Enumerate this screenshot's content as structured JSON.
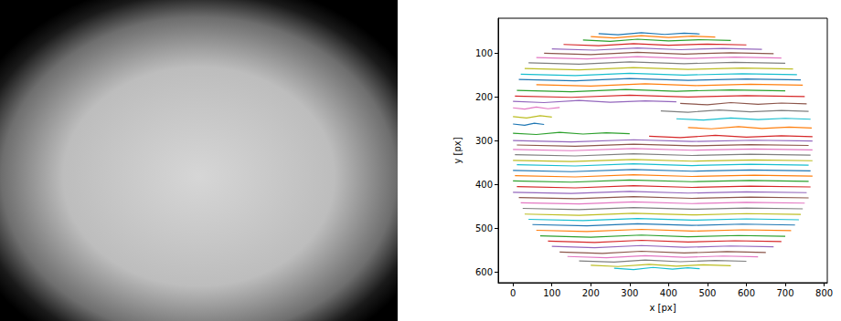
{
  "chart_data": {
    "type": "line",
    "x_label": "x [px]",
    "y_label": "y [px]",
    "xlim": [
      -38,
      808
    ],
    "xticks": [
      0,
      100,
      200,
      300,
      400,
      500,
      600,
      700,
      800
    ],
    "ylim": [
      625,
      20
    ],
    "yticks": [
      100,
      200,
      300,
      400,
      500,
      600
    ],
    "grid": false,
    "series": [
      {
        "color": "#1f77b4",
        "x": [
          220,
          270,
          330,
          390,
          440,
          480
        ],
        "values": [
          55,
          58,
          53,
          57,
          54,
          56
        ]
      },
      {
        "color": "#ff7f0e",
        "x": [
          200,
          260,
          330,
          400,
          460,
          520
        ],
        "values": [
          62,
          65,
          60,
          64,
          61,
          63
        ]
      },
      {
        "color": "#2ca02c",
        "x": [
          180,
          250,
          320,
          400,
          480,
          560
        ],
        "values": [
          70,
          73,
          68,
          72,
          69,
          71
        ]
      },
      {
        "color": "#d62728",
        "x": [
          130,
          220,
          310,
          400,
          500,
          600
        ],
        "values": [
          80,
          83,
          78,
          82,
          79,
          81
        ]
      },
      {
        "color": "#9467bd",
        "x": [
          100,
          210,
          320,
          430,
          540,
          640
        ],
        "values": [
          90,
          93,
          88,
          92,
          89,
          91
        ]
      },
      {
        "color": "#8c564b",
        "x": [
          80,
          200,
          320,
          440,
          560,
          670
        ],
        "values": [
          100,
          103,
          98,
          102,
          99,
          101
        ]
      },
      {
        "color": "#e377c2",
        "x": [
          60,
          190,
          320,
          450,
          570,
          690
        ],
        "values": [
          110,
          113,
          108,
          112,
          109,
          111
        ]
      },
      {
        "color": "#7f7f7f",
        "x": [
          40,
          170,
          300,
          440,
          570,
          700
        ],
        "values": [
          122,
          125,
          120,
          124,
          121,
          123
        ]
      },
      {
        "color": "#bcbd22",
        "x": [
          30,
          170,
          310,
          450,
          590,
          720
        ],
        "values": [
          135,
          138,
          133,
          137,
          134,
          136
        ]
      },
      {
        "color": "#17becf",
        "x": [
          20,
          160,
          300,
          440,
          590,
          730
        ],
        "values": [
          148,
          151,
          146,
          150,
          147,
          149
        ]
      },
      {
        "color": "#1f77b4",
        "x": [
          15,
          160,
          300,
          450,
          600,
          740
        ],
        "values": [
          160,
          163,
          158,
          162,
          159,
          161
        ]
      },
      {
        "color": "#ff7f0e",
        "x": [
          60,
          200,
          340,
          470,
          610,
          745
        ],
        "values": [
          172,
          175,
          170,
          174,
          171,
          173
        ]
      },
      {
        "color": "#2ca02c",
        "x": [
          10,
          150,
          290,
          420,
          560,
          700
        ],
        "values": [
          185,
          188,
          183,
          187,
          184,
          186
        ]
      },
      {
        "color": "#d62728",
        "x": [
          5,
          150,
          300,
          450,
          600,
          750
        ],
        "values": [
          198,
          201,
          196,
          200,
          197,
          199
        ]
      },
      {
        "color": "#9467bd",
        "x": [
          0,
          80,
          170,
          250,
          340,
          420
        ],
        "values": [
          210,
          213,
          208,
          212,
          209,
          211
        ]
      },
      {
        "color": "#8c564b",
        "x": [
          430,
          500,
          560,
          630,
          690,
          755
        ],
        "values": [
          215,
          218,
          213,
          217,
          214,
          216
        ]
      },
      {
        "color": "#e377c2",
        "x": [
          0,
          30,
          60,
          90,
          120
        ],
        "values": [
          225,
          228,
          223,
          227,
          224
        ]
      },
      {
        "color": "#7f7f7f",
        "x": [
          380,
          450,
          530,
          610,
          690,
          760
        ],
        "values": [
          232,
          235,
          230,
          234,
          231,
          233
        ]
      },
      {
        "color": "#bcbd22",
        "x": [
          0,
          35,
          70,
          100
        ],
        "values": [
          245,
          248,
          243,
          246
        ]
      },
      {
        "color": "#17becf",
        "x": [
          420,
          490,
          560,
          630,
          700,
          765
        ],
        "values": [
          250,
          253,
          248,
          252,
          249,
          251
        ]
      },
      {
        "color": "#1f77b4",
        "x": [
          0,
          30,
          55,
          80
        ],
        "values": [
          262,
          265,
          260,
          263
        ]
      },
      {
        "color": "#ff7f0e",
        "x": [
          450,
          510,
          580,
          640,
          710,
          768
        ],
        "values": [
          270,
          273,
          268,
          272,
          269,
          271
        ]
      },
      {
        "color": "#2ca02c",
        "x": [
          0,
          60,
          120,
          180,
          240,
          300
        ],
        "values": [
          283,
          286,
          281,
          285,
          282,
          284
        ]
      },
      {
        "color": "#d62728",
        "x": [
          350,
          430,
          520,
          600,
          690,
          770
        ],
        "values": [
          290,
          293,
          288,
          292,
          289,
          291
        ]
      },
      {
        "color": "#9467bd",
        "x": [
          0,
          150,
          310,
          460,
          620,
          770
        ],
        "values": [
          300,
          303,
          298,
          302,
          299,
          301
        ]
      },
      {
        "color": "#8c564b",
        "x": [
          10,
          160,
          310,
          460,
          610,
          760
        ],
        "values": [
          310,
          313,
          308,
          312,
          309,
          311
        ]
      },
      {
        "color": "#e377c2",
        "x": [
          0,
          150,
          310,
          460,
          620,
          770
        ],
        "values": [
          320,
          323,
          318,
          322,
          319,
          321
        ]
      },
      {
        "color": "#7f7f7f",
        "x": [
          5,
          160,
          310,
          460,
          610,
          765
        ],
        "values": [
          332,
          335,
          330,
          334,
          331,
          333
        ]
      },
      {
        "color": "#bcbd22",
        "x": [
          0,
          150,
          310,
          460,
          620,
          770
        ],
        "values": [
          345,
          348,
          343,
          347,
          344,
          346
        ]
      },
      {
        "color": "#17becf",
        "x": [
          10,
          160,
          310,
          460,
          610,
          760
        ],
        "values": [
          355,
          358,
          353,
          357,
          354,
          356
        ]
      },
      {
        "color": "#1f77b4",
        "x": [
          0,
          150,
          310,
          460,
          610,
          765
        ],
        "values": [
          368,
          371,
          366,
          370,
          367,
          369
        ]
      },
      {
        "color": "#ff7f0e",
        "x": [
          5,
          160,
          310,
          460,
          620,
          770
        ],
        "values": [
          380,
          383,
          378,
          382,
          379,
          381
        ]
      },
      {
        "color": "#2ca02c",
        "x": [
          0,
          150,
          300,
          460,
          610,
          760
        ],
        "values": [
          392,
          395,
          390,
          394,
          391,
          393
        ]
      },
      {
        "color": "#d62728",
        "x": [
          10,
          160,
          310,
          460,
          610,
          765
        ],
        "values": [
          405,
          408,
          403,
          407,
          404,
          406
        ]
      },
      {
        "color": "#9467bd",
        "x": [
          0,
          150,
          300,
          450,
          600,
          755
        ],
        "values": [
          418,
          421,
          416,
          420,
          417,
          419
        ]
      },
      {
        "color": "#8c564b",
        "x": [
          15,
          160,
          310,
          460,
          610,
          760
        ],
        "values": [
          430,
          433,
          428,
          432,
          429,
          431
        ]
      },
      {
        "color": "#e377c2",
        "x": [
          20,
          170,
          310,
          460,
          600,
          750
        ],
        "values": [
          442,
          445,
          440,
          444,
          441,
          443
        ]
      },
      {
        "color": "#7f7f7f",
        "x": [
          25,
          170,
          310,
          460,
          600,
          745
        ],
        "values": [
          455,
          458,
          453,
          457,
          454,
          456
        ]
      },
      {
        "color": "#bcbd22",
        "x": [
          30,
          170,
          310,
          460,
          600,
          740
        ],
        "values": [
          468,
          471,
          466,
          470,
          467,
          469
        ]
      },
      {
        "color": "#17becf",
        "x": [
          40,
          180,
          320,
          460,
          600,
          735
        ],
        "values": [
          480,
          483,
          478,
          482,
          479,
          481
        ]
      },
      {
        "color": "#1f77b4",
        "x": [
          50,
          190,
          320,
          460,
          590,
          725
        ],
        "values": [
          492,
          495,
          490,
          494,
          491,
          493
        ]
      },
      {
        "color": "#ff7f0e",
        "x": [
          60,
          190,
          330,
          460,
          590,
          715
        ],
        "values": [
          505,
          508,
          503,
          507,
          504,
          506
        ]
      },
      {
        "color": "#2ca02c",
        "x": [
          70,
          200,
          330,
          450,
          580,
          700
        ],
        "values": [
          518,
          521,
          516,
          520,
          517,
          519
        ]
      },
      {
        "color": "#d62728",
        "x": [
          90,
          210,
          330,
          450,
          570,
          690
        ],
        "values": [
          530,
          533,
          528,
          532,
          529,
          531
        ]
      },
      {
        "color": "#9467bd",
        "x": [
          100,
          210,
          330,
          440,
          560,
          670
        ],
        "values": [
          542,
          545,
          540,
          544,
          541,
          543
        ]
      },
      {
        "color": "#8c564b",
        "x": [
          120,
          230,
          330,
          440,
          550,
          650
        ],
        "values": [
          555,
          558,
          553,
          557,
          554,
          556
        ]
      },
      {
        "color": "#e377c2",
        "x": [
          140,
          240,
          340,
          440,
          540,
          630
        ],
        "values": [
          565,
          568,
          563,
          567,
          564,
          566
        ]
      },
      {
        "color": "#7f7f7f",
        "x": [
          170,
          260,
          340,
          430,
          520,
          600
        ],
        "values": [
          575,
          578,
          573,
          577,
          574,
          576
        ]
      },
      {
        "color": "#bcbd22",
        "x": [
          200,
          270,
          350,
          420,
          490,
          560
        ],
        "values": [
          585,
          588,
          583,
          587,
          584,
          586
        ]
      },
      {
        "color": "#17becf",
        "x": [
          260,
          310,
          360,
          410,
          450,
          480
        ],
        "values": [
          592,
          595,
          590,
          594,
          591,
          593
        ]
      }
    ]
  }
}
